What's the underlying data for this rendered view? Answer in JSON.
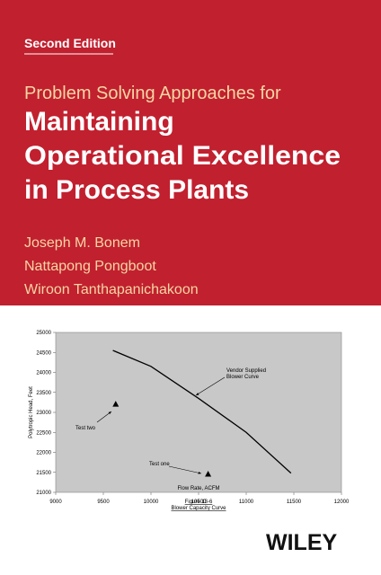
{
  "cover": {
    "edition": "Second Edition",
    "title_lead": "Problem Solving Approaches for",
    "title_lines": [
      "Maintaining",
      "Operational Excellence",
      "in Process Plants"
    ],
    "authors": [
      "Joseph M. Bonem",
      "Nattapong Pongboot",
      "Wiroon Tanthapanichakoon"
    ],
    "publisher": "WILEY"
  },
  "chart_data": {
    "type": "line",
    "x_label": "Flow Rate, ACFM",
    "y_label": "Polytropic Head, Feet",
    "caption": [
      "Figure 13-6",
      "Blower Capacity Curve"
    ],
    "xlim": [
      9000,
      12000
    ],
    "xticks": [
      9000,
      9500,
      10000,
      10500,
      11000,
      11500,
      12000
    ],
    "ylim": [
      21000,
      25000
    ],
    "yticks": [
      21000,
      21500,
      22000,
      22500,
      23000,
      23500,
      24000,
      24500,
      25000
    ],
    "series": [
      {
        "color": "#000000",
        "x": [
          9600,
          10000,
          10500,
          11000,
          11470
        ],
        "values": [
          24550,
          24150,
          23350,
          22500,
          21480
        ]
      },
      {
        "color": "#000000",
        "x": [
          9630,
          10600
        ],
        "values": [
          23200,
          21450
        ]
      }
    ],
    "annotations": [
      [
        "Vendor Supplied",
        "Blower Curve"
      ],
      [
        "Test two"
      ],
      [
        "Test one"
      ]
    ],
    "plot_background": "#c8c8c8"
  }
}
